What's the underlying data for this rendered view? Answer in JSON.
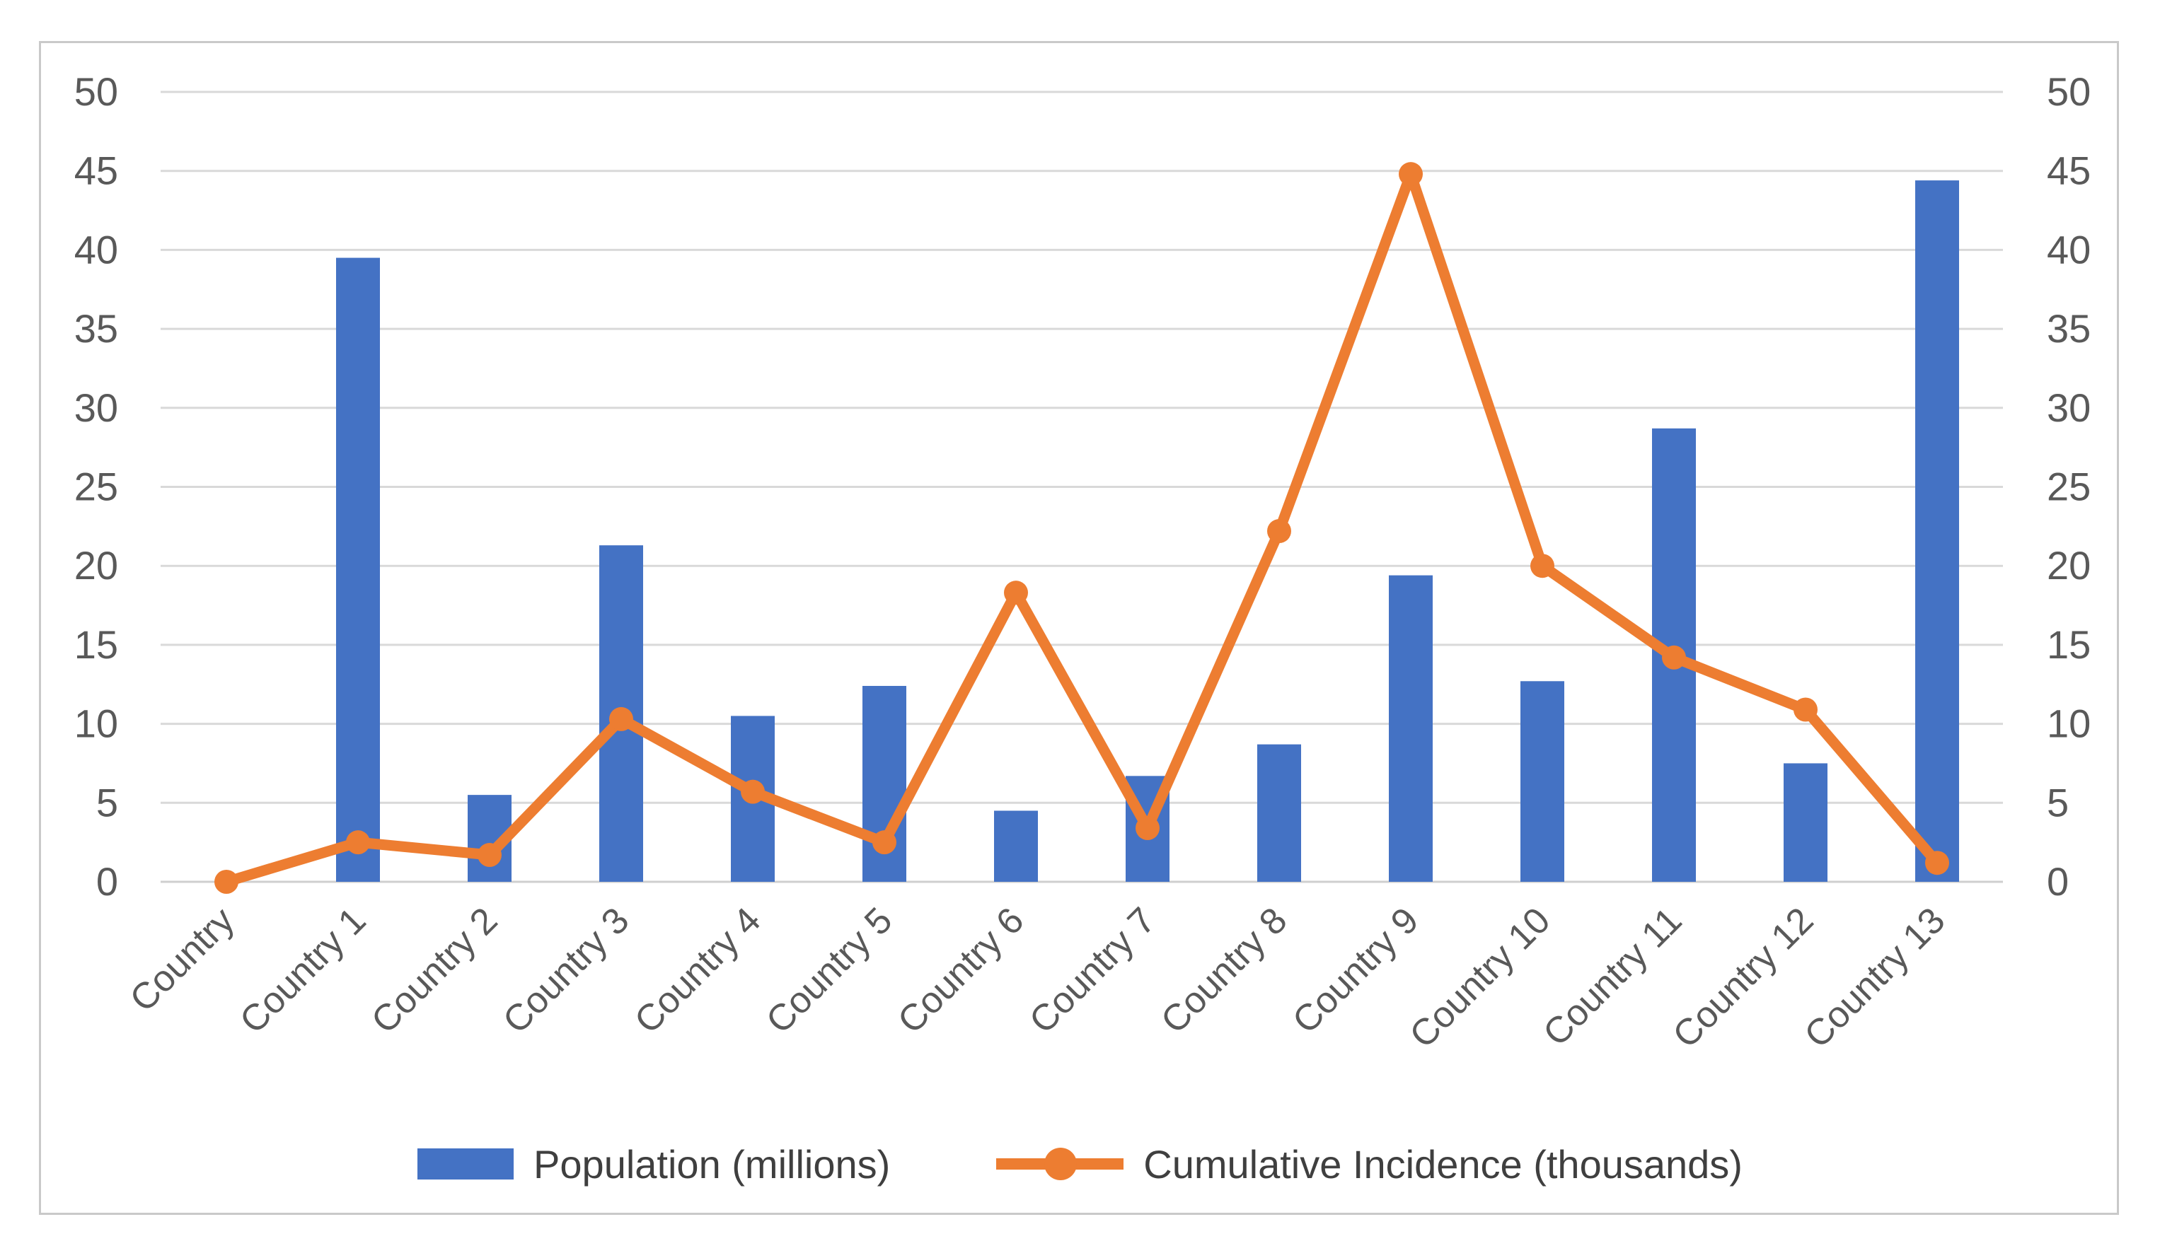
{
  "chart_data": {
    "type": "combo_bar_line",
    "title": "",
    "categories": [
      "Country",
      "Country 1",
      "Country 2",
      "Country 3",
      "Country 4",
      "Country 5",
      "Country 6",
      "Country 7",
      "Country 8",
      "Country 9",
      "Country 10",
      "Country 11",
      "Country 12",
      "Country 13"
    ],
    "series": [
      {
        "name": "Population (millions)",
        "type": "bar",
        "color": "#4472C4",
        "values": [
          0,
          39.5,
          5.5,
          21.3,
          10.5,
          12.4,
          4.5,
          6.7,
          8.7,
          19.4,
          12.7,
          28.7,
          7.5,
          44.4
        ]
      },
      {
        "name": "Cumulative Incidence (thousands)",
        "type": "line",
        "color": "#ED7D31",
        "values": [
          0,
          2.5,
          1.7,
          10.3,
          5.7,
          2.5,
          18.3,
          3.4,
          22.2,
          44.8,
          20,
          14.2,
          10.9,
          1.2
        ]
      }
    ],
    "y_axis_left": {
      "min": 0,
      "max": 50,
      "step": 5,
      "tick_labels": [
        "0",
        "5",
        "10",
        "15",
        "20",
        "25",
        "30",
        "35",
        "40",
        "45",
        "50"
      ]
    },
    "y_axis_right": {
      "min": 0,
      "max": 50,
      "step": 5,
      "tick_labels": [
        "0",
        "5",
        "10",
        "15",
        "20",
        "25",
        "30",
        "35",
        "40",
        "45",
        "50"
      ]
    },
    "x_tick_rotation_deg": -45,
    "grid": true,
    "legend_position": "bottom",
    "style": {
      "grid_color": "#D9D9D9",
      "axis_line_color": "#CFCFCF",
      "tick_text_color": "#595959",
      "legend_text_color": "#3F3F3F",
      "border_color": "#C9C9C9",
      "background": "#FFFFFF"
    }
  }
}
